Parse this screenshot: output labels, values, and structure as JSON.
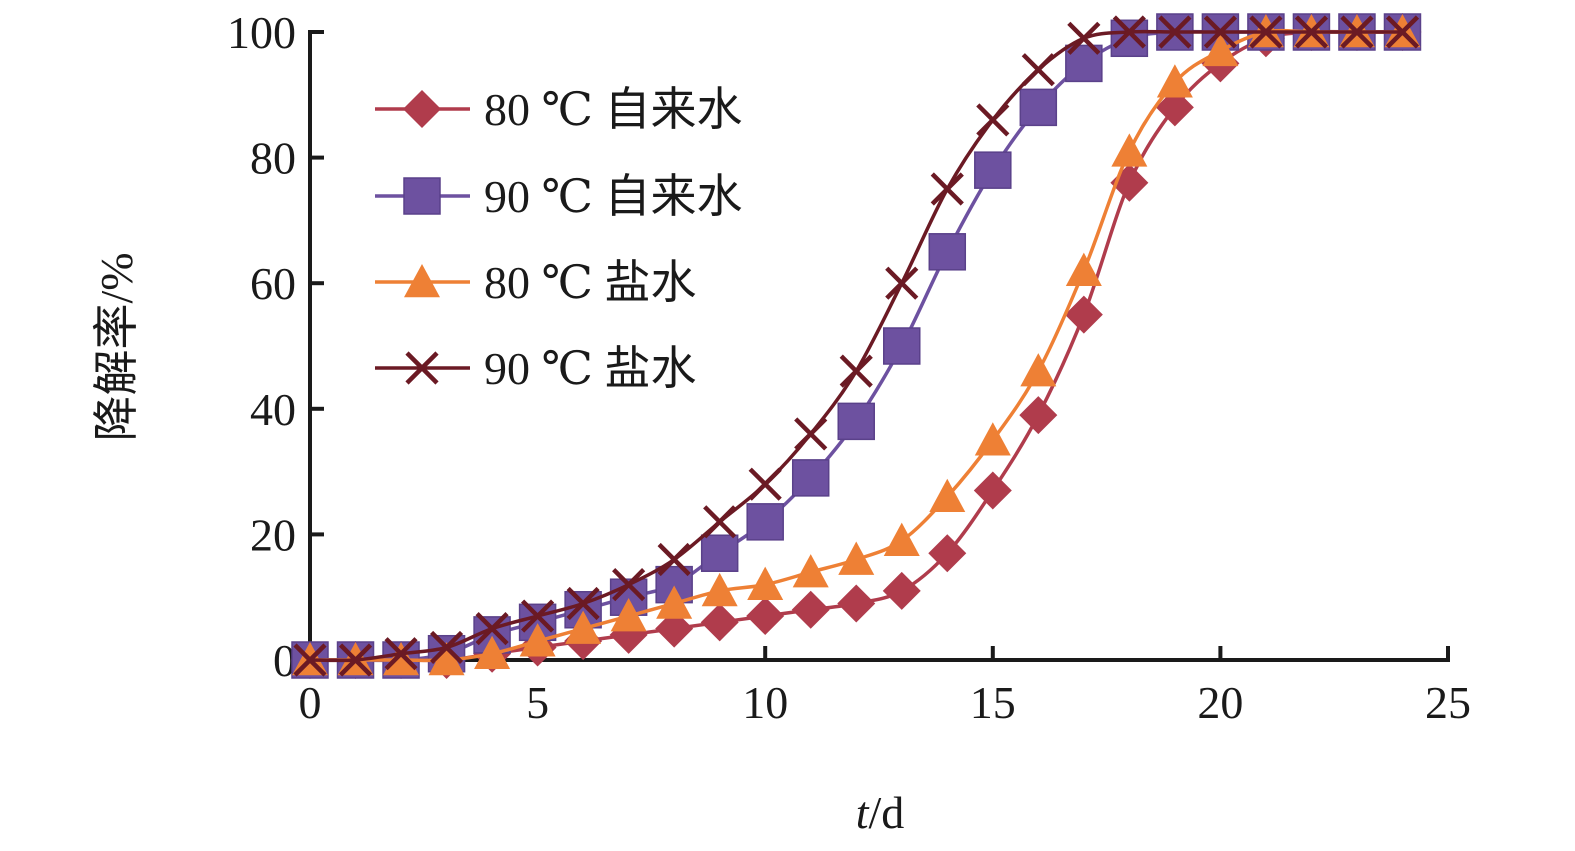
{
  "chart_data": {
    "type": "line",
    "title": "",
    "xlabel_italic": "t",
    "xlabel_suffix": "/d",
    "ylabel": "降解率/%",
    "xlim": [
      0,
      25
    ],
    "ylim": [
      0,
      100
    ],
    "x_ticks": [
      "0",
      "5",
      "10",
      "15",
      "20",
      "25"
    ],
    "y_ticks": [
      "0",
      "20",
      "40",
      "60",
      "80",
      "100"
    ],
    "legend_position": "top-left",
    "grid": false,
    "x": [
      0,
      1,
      2,
      3,
      4,
      5,
      6,
      7,
      8,
      9,
      10,
      11,
      12,
      13,
      14,
      15,
      16,
      17,
      18,
      19,
      20,
      21,
      22,
      23,
      24
    ],
    "series": [
      {
        "name": "80 ℃ 自来水",
        "marker": "diamond",
        "color": "#b03c4c",
        "values": [
          0,
          0,
          0,
          0,
          1,
          2,
          3,
          4,
          5,
          6,
          7,
          8,
          9,
          11,
          17,
          27,
          39,
          55,
          76,
          88,
          95,
          99,
          100,
          100,
          100
        ]
      },
      {
        "name": "90 ℃ 自来水",
        "marker": "square",
        "color": "#6d51a0",
        "values": [
          0,
          0,
          0,
          1,
          4,
          6,
          8,
          10,
          12,
          17,
          22,
          29,
          38,
          50,
          65,
          78,
          88,
          95,
          99,
          100,
          100,
          100,
          100,
          100,
          100
        ]
      },
      {
        "name": "80 ℃ 盐水",
        "marker": "triangle",
        "color": "#ee8035",
        "values": [
          0,
          0,
          0,
          0,
          1,
          3,
          5,
          7,
          9,
          11,
          12,
          14,
          16,
          19,
          26,
          35,
          46,
          62,
          81,
          92,
          97,
          100,
          100,
          100,
          100
        ]
      },
      {
        "name": "90 ℃ 盐水",
        "marker": "cross",
        "color": "#6b1a24",
        "values": [
          0,
          0,
          1,
          2,
          5,
          7,
          9,
          12,
          16,
          22,
          28,
          36,
          46,
          60,
          75,
          86,
          94,
          99,
          100,
          100,
          100,
          100,
          100,
          100,
          100
        ]
      }
    ]
  }
}
